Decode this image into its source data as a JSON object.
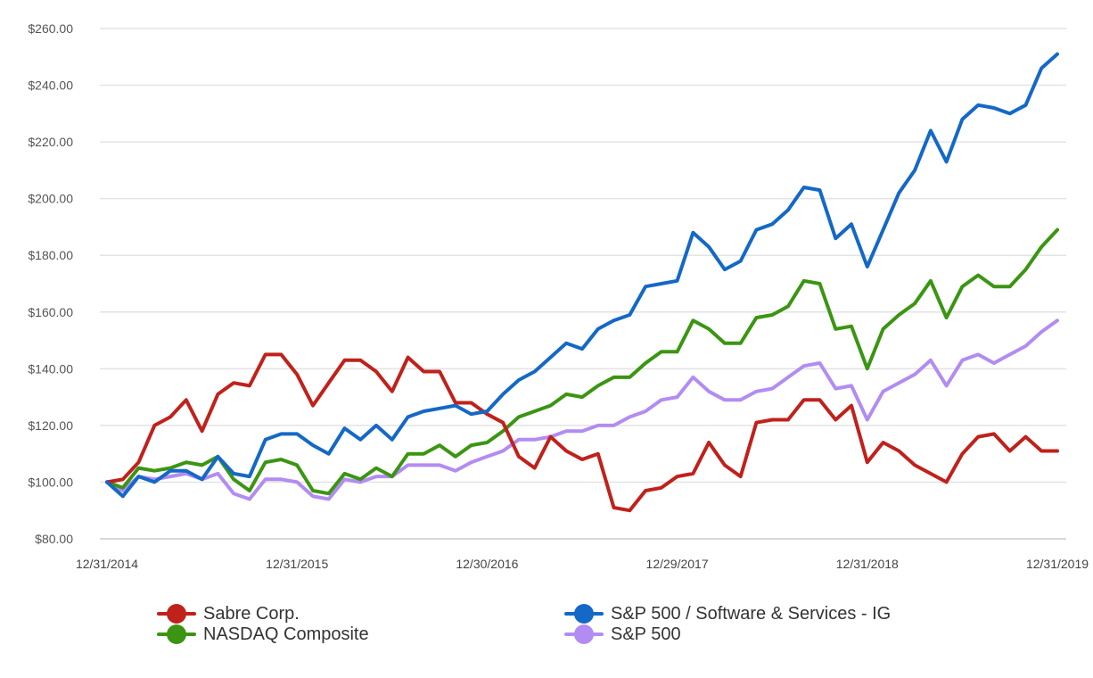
{
  "chart_data": {
    "type": "line",
    "title": "",
    "xlabel": "",
    "ylabel": "",
    "ylim": [
      80,
      260
    ],
    "yticks": [
      80,
      100,
      120,
      140,
      160,
      180,
      200,
      220,
      240,
      260
    ],
    "ytick_labels": [
      "$80.00",
      "$100.00",
      "$120.00",
      "$140.00",
      "$160.00",
      "$180.00",
      "$200.00",
      "$220.00",
      "$240.00",
      "$260.00"
    ],
    "xlim": [
      0,
      60
    ],
    "xtick_positions": [
      0,
      12,
      24,
      36,
      48,
      60
    ],
    "xtick_labels": [
      "12/31/2014",
      "12/31/2015",
      "12/30/2016",
      "12/29/2017",
      "12/31/2018",
      "12/31/2019"
    ],
    "grid": true,
    "legend_position": "bottom",
    "series": [
      {
        "name": "Sabre Corp.",
        "color": "#c0211b",
        "values": [
          100,
          101,
          107,
          120,
          123,
          129,
          118,
          131,
          135,
          134,
          145,
          145,
          138,
          127,
          135,
          143,
          143,
          139,
          132,
          144,
          139,
          139,
          128,
          128,
          124,
          121,
          109,
          105,
          116,
          111,
          108,
          110,
          91,
          90,
          97,
          98,
          102,
          103,
          114,
          106,
          102,
          121,
          122,
          122,
          129,
          129,
          122,
          127,
          107,
          114,
          111,
          106,
          103,
          100,
          110,
          116,
          117,
          111,
          116,
          111,
          111
        ]
      },
      {
        "name": "S&P 500 / Software & Services - IG",
        "color": "#1468c7",
        "values": [
          100,
          95,
          102,
          100,
          104,
          104,
          101,
          109,
          103,
          102,
          115,
          117,
          117,
          113,
          110,
          119,
          115,
          120,
          115,
          123,
          125,
          126,
          127,
          124,
          125,
          131,
          136,
          139,
          144,
          149,
          147,
          154,
          157,
          159,
          169,
          170,
          171,
          188,
          183,
          175,
          178,
          189,
          191,
          196,
          204,
          203,
          186,
          191,
          176,
          189,
          202,
          210,
          224,
          213,
          228,
          233,
          232,
          230,
          233,
          246,
          251
        ]
      },
      {
        "name": "NASDAQ Composite",
        "color": "#3b9512",
        "values": [
          100,
          98,
          105,
          104,
          105,
          107,
          106,
          109,
          101,
          97,
          107,
          108,
          106,
          97,
          96,
          103,
          101,
          105,
          102,
          110,
          110,
          113,
          109,
          113,
          114,
          118,
          123,
          125,
          127,
          131,
          130,
          134,
          137,
          137,
          142,
          146,
          146,
          157,
          154,
          149,
          149,
          158,
          159,
          162,
          171,
          170,
          154,
          155,
          140,
          154,
          159,
          163,
          171,
          158,
          169,
          173,
          169,
          169,
          175,
          183,
          189
        ]
      },
      {
        "name": "S&P 500",
        "color": "#b28cf2",
        "values": [
          100,
          97,
          102,
          101,
          102,
          103,
          101,
          103,
          96,
          94,
          101,
          101,
          100,
          95,
          94,
          101,
          100,
          102,
          102,
          106,
          106,
          106,
          104,
          107,
          109,
          111,
          115,
          115,
          116,
          118,
          118,
          120,
          120,
          123,
          125,
          129,
          130,
          137,
          132,
          129,
          129,
          132,
          133,
          137,
          141,
          142,
          133,
          134,
          122,
          132,
          135,
          138,
          143,
          134,
          143,
          145,
          142,
          145,
          148,
          153,
          157
        ]
      }
    ]
  },
  "legend": {
    "sabre": "Sabre Corp.",
    "nasdaq": "NASDAQ Composite",
    "software": "S&P 500 / Software & Services - IG",
    "sp500": "S&P 500"
  }
}
